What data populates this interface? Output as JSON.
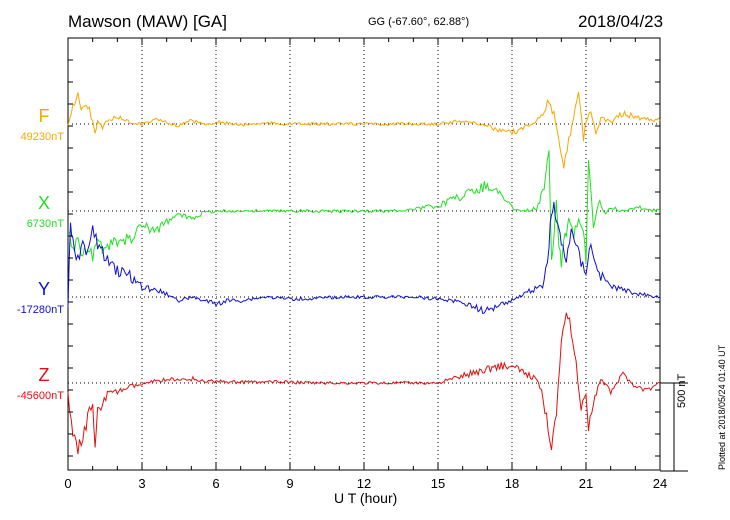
{
  "header": {
    "station": "Mawson (MAW)  [GA]",
    "coords": "GG (-67.60°,  62.88°)",
    "date": "2018/04/23"
  },
  "footer": {
    "scale_label": "500 nT",
    "plotted_note": "Plotted at 2018/05/24 01:40 UT"
  },
  "chart_data": {
    "type": "line",
    "xlabel": "U T (hour)",
    "xlim": [
      0,
      24
    ],
    "x_ticks": [
      "0",
      "3",
      "6",
      "9",
      "12",
      "15",
      "18",
      "21",
      "24"
    ],
    "scale_bar_nT": 500,
    "grid": "dotted vertical every 3 hours",
    "series": [
      {
        "name": "F",
        "baseline_label": "49230nT",
        "color": "#f5a800",
        "x": [
          0,
          0.2,
          0.4,
          0.6,
          0.8,
          1.0,
          1.1,
          1.2,
          1.4,
          1.6,
          2.0,
          2.5,
          3.0,
          3.5,
          4.0,
          4.5,
          5.0,
          5.5,
          6.0,
          7.0,
          8.0,
          9.0,
          10,
          11,
          12,
          13,
          14,
          15,
          15.5,
          16,
          16.5,
          17,
          17.5,
          18,
          18.5,
          19,
          19.3,
          19.5,
          19.7,
          19.9,
          20.0,
          20.1,
          20.3,
          20.5,
          20.7,
          20.9,
          21.0,
          21.2,
          21.4,
          21.6,
          22,
          22.5,
          23,
          23.5,
          24
        ],
        "values": [
          -20,
          120,
          160,
          80,
          100,
          20,
          -60,
          30,
          -20,
          20,
          40,
          10,
          0,
          25,
          10,
          -10,
          20,
          0,
          10,
          -5,
          5,
          0,
          0,
          0,
          0,
          0,
          0,
          0,
          10,
          20,
          5,
          -10,
          -40,
          -50,
          -20,
          20,
          80,
          120,
          60,
          -100,
          -200,
          -240,
          -100,
          50,
          200,
          -80,
          20,
          80,
          -60,
          30,
          10,
          60,
          40,
          30,
          20
        ]
      },
      {
        "name": "X",
        "baseline_label": "6730nT",
        "color": "#22e022",
        "x": [
          0,
          0.2,
          0.4,
          0.6,
          0.8,
          1.0,
          1.2,
          1.4,
          1.6,
          2.0,
          2.5,
          3.0,
          3.5,
          4.0,
          4.5,
          5.0,
          5.5,
          6.0,
          7.0,
          8.0,
          9.0,
          10,
          11,
          12,
          13,
          14,
          14.5,
          15,
          15.5,
          16,
          16.5,
          17,
          17.5,
          18,
          18.5,
          19,
          19.3,
          19.5,
          19.6,
          19.7,
          19.8,
          19.9,
          20.0,
          20.1,
          20.2,
          20.3,
          20.5,
          20.7,
          20.9,
          21.0,
          21.1,
          21.3,
          21.5,
          21.8,
          22,
          22.5,
          23,
          23.5,
          24
        ],
        "values": [
          -100,
          -200,
          -180,
          -240,
          -200,
          -250,
          -160,
          -220,
          -200,
          -180,
          -160,
          -80,
          -120,
          -60,
          -20,
          -40,
          -10,
          0,
          0,
          0,
          0,
          0,
          0,
          0,
          0,
          10,
          20,
          30,
          60,
          90,
          120,
          150,
          100,
          20,
          0,
          20,
          120,
          380,
          -300,
          -120,
          60,
          -180,
          -300,
          -150,
          -160,
          -50,
          -150,
          -40,
          -100,
          -300,
          300,
          -100,
          60,
          -20,
          20,
          0,
          20,
          10,
          0
        ]
      },
      {
        "name": "Y",
        "baseline_label": "-17280nT",
        "color": "#1010d8",
        "x": [
          0,
          0.1,
          0.2,
          0.4,
          0.6,
          0.8,
          1.0,
          1.2,
          1.4,
          1.6,
          1.8,
          2.0,
          2.5,
          3.0,
          3.5,
          4.0,
          4.5,
          5.0,
          5.5,
          6.0,
          6.5,
          7.0,
          8.0,
          9.0,
          10,
          11,
          12,
          13,
          14,
          15,
          15.5,
          16,
          16.5,
          17,
          17.5,
          18,
          18.5,
          19,
          19.3,
          19.5,
          19.6,
          19.7,
          19.8,
          19.9,
          20.0,
          20.2,
          20.4,
          20.6,
          20.8,
          21.0,
          21.2,
          21.4,
          21.6,
          22,
          22.5,
          23,
          23.5,
          24
        ],
        "values": [
          -50,
          400,
          300,
          220,
          300,
          260,
          380,
          300,
          250,
          200,
          180,
          150,
          120,
          60,
          40,
          20,
          -20,
          0,
          -20,
          -40,
          -20,
          -20,
          0,
          -10,
          -10,
          0,
          0,
          0,
          0,
          -10,
          -20,
          -30,
          -60,
          -80,
          -40,
          -20,
          20,
          50,
          80,
          300,
          480,
          520,
          420,
          380,
          300,
          200,
          400,
          280,
          200,
          150,
          300,
          180,
          120,
          60,
          40,
          20,
          10,
          0
        ]
      },
      {
        "name": "Z",
        "baseline_label": "-45600nT",
        "color": "#e01010",
        "x": [
          0,
          0.2,
          0.4,
          0.6,
          0.8,
          1.0,
          1.1,
          1.2,
          1.4,
          1.6,
          2.0,
          2.5,
          3.0,
          3.5,
          4.0,
          4.5,
          5.0,
          5.5,
          6.0,
          7.0,
          8.0,
          9.0,
          10,
          11,
          12,
          13,
          14,
          15,
          15.5,
          16,
          16.5,
          17,
          17.5,
          18,
          18.5,
          19,
          19.2,
          19.4,
          19.6,
          19.8,
          20.0,
          20.2,
          20.4,
          20.6,
          20.8,
          21.0,
          21.1,
          21.3,
          21.6,
          22,
          22.5,
          23,
          23.5,
          24
        ],
        "values": [
          -50,
          -300,
          -380,
          -300,
          -200,
          -100,
          -340,
          -150,
          -120,
          -60,
          -50,
          -20,
          -10,
          10,
          20,
          15,
          25,
          10,
          10,
          5,
          5,
          5,
          0,
          0,
          0,
          0,
          0,
          0,
          20,
          40,
          60,
          80,
          100,
          90,
          60,
          20,
          -50,
          -200,
          -350,
          -150,
          250,
          400,
          300,
          100,
          -150,
          -50,
          -250,
          -100,
          20,
          -50,
          50,
          -20,
          -40,
          0
        ]
      }
    ]
  }
}
